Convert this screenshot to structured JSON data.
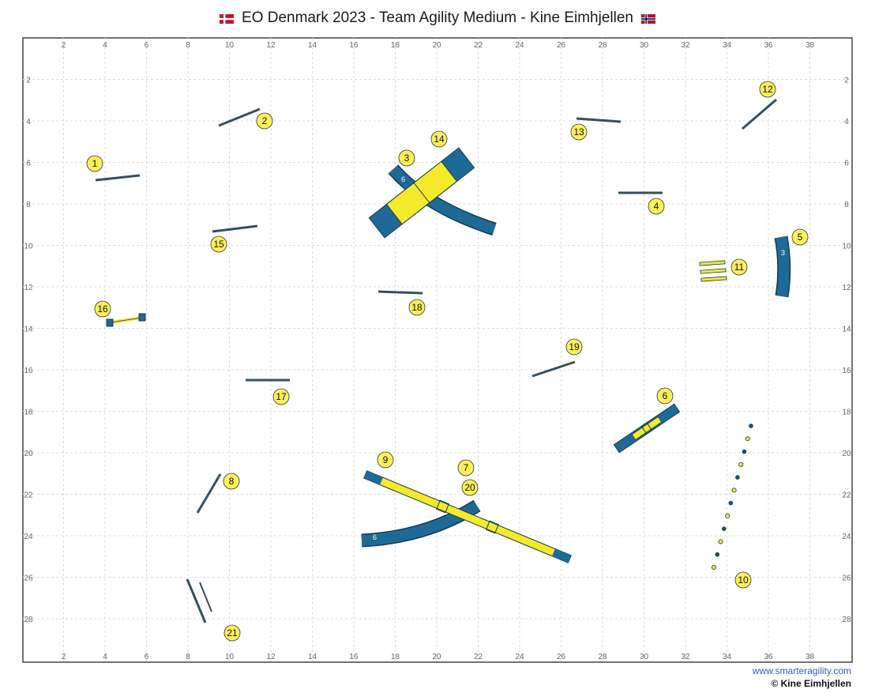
{
  "title": "EO Denmark 2023 - Team Agility Medium - Kine Eimhjellen",
  "flags": {
    "left": "denmark-flag-icon",
    "right": "norway-flag-icon"
  },
  "axis": {
    "x_ticks": [
      "2",
      "4",
      "6",
      "8",
      "10",
      "12",
      "14",
      "16",
      "18",
      "20",
      "22",
      "24",
      "26",
      "28",
      "30",
      "32",
      "34",
      "36",
      "38"
    ],
    "y_ticks": [
      "2",
      "4",
      "6",
      "8",
      "10",
      "12",
      "14",
      "16",
      "18",
      "20",
      "22",
      "24",
      "26",
      "28"
    ]
  },
  "numbers": [
    "1",
    "2",
    "3",
    "4",
    "5",
    "6",
    "7",
    "8",
    "9",
    "10",
    "11",
    "12",
    "13",
    "14",
    "15",
    "16",
    "17",
    "18",
    "19",
    "20",
    "21"
  ],
  "tunnel_labels": {
    "tunnel_a": "6",
    "tunnel_b": "3",
    "tunnel_c": "6"
  },
  "footer": {
    "website": "www.smarteragility.com",
    "copyright": "© Kine Eimhjellen"
  },
  "colors": {
    "tunnel": "#1e6a96",
    "tunnel_dark": "#153b55",
    "contact": "#f4ea2a",
    "marker": "#fbf05a",
    "bar": "#35505f",
    "grid": "#dcdcdc"
  }
}
